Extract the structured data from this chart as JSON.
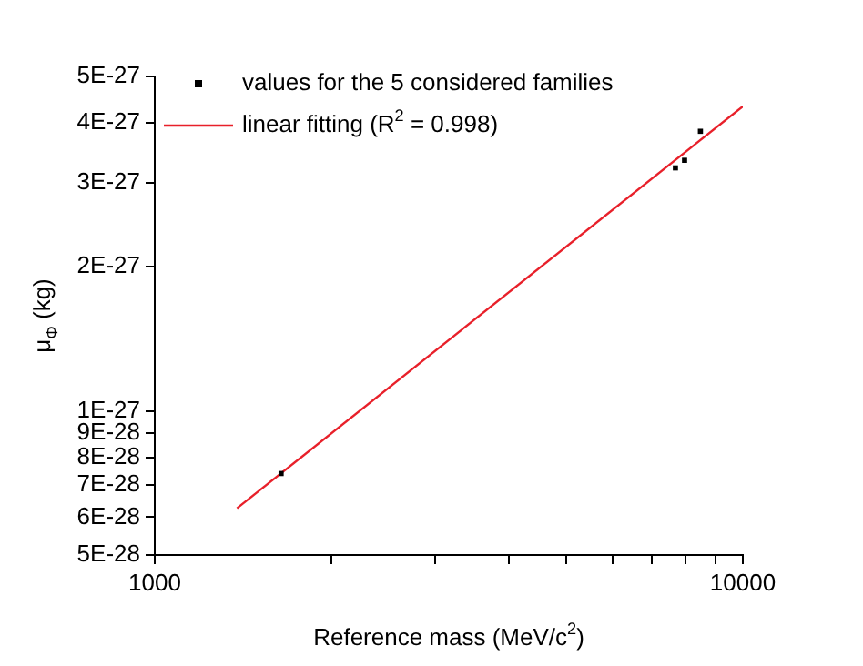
{
  "chart_data": {
    "type": "scatter",
    "xlabel": "Reference mass (MeV/c$^{2}$)",
    "ylabel": "μ$_{Φ}$ (kg)",
    "log": "xy",
    "xlim": [
      1000,
      10000
    ],
    "ylim": [
      5e-28,
      5e-27
    ],
    "xticks": [
      1000,
      {
        "value": 2000,
        "label": null
      },
      {
        "value": 3000,
        "label": null
      },
      {
        "value": 4000,
        "label": null
      },
      {
        "value": 5000,
        "label": null
      },
      {
        "value": 6000,
        "label": null
      },
      {
        "value": 7000,
        "label": null
      },
      {
        "value": 8000,
        "label": null
      },
      {
        "value": 9000,
        "label": null
      },
      10000
    ],
    "yticks": [
      {
        "value": 5e-28,
        "label": "5E-28"
      },
      {
        "value": 6e-28,
        "label": "6E-28"
      },
      {
        "value": 7e-28,
        "label": "7E-28"
      },
      {
        "value": 8e-28,
        "label": "8E-28"
      },
      {
        "value": 9e-28,
        "label": "9E-28"
      },
      {
        "value": 1e-27,
        "label": "1E-27"
      },
      {
        "value": 2e-27,
        "label": "2E-27"
      },
      {
        "value": 3e-27,
        "label": "3E-27"
      },
      {
        "value": 4e-27,
        "label": "4E-27"
      },
      {
        "value": 5e-27,
        "label": "5E-27"
      }
    ],
    "grid": false,
    "legend": "top left",
    "series": [
      {
        "name": "values for the 5 considered families",
        "marker": "square",
        "color": "#000000",
        "x": [
          1640,
          7680,
          7960,
          8470
        ],
        "values": [
          7.4e-28,
          3.22e-27,
          3.34e-27,
          3.84e-27
        ]
      },
      {
        "name": "linear fitting (R$^{2}$ = 0.998)",
        "type": "line",
        "marker": "none",
        "line_style": "solid",
        "color": "#e8202a",
        "x": [
          1380,
          10000
        ],
        "values": [
          6.26e-28,
          4.33e-27
        ]
      }
    ]
  }
}
